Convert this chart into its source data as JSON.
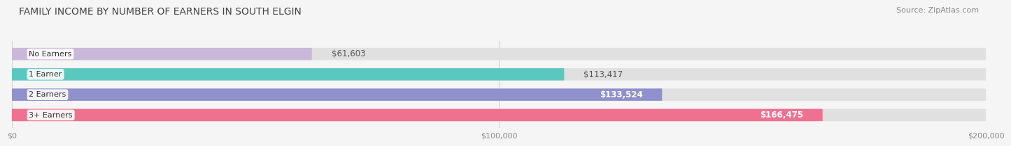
{
  "title": "FAMILY INCOME BY NUMBER OF EARNERS IN SOUTH ELGIN",
  "source": "Source: ZipAtlas.com",
  "categories": [
    "No Earners",
    "1 Earner",
    "2 Earners",
    "3+ Earners"
  ],
  "values": [
    61603,
    113417,
    133524,
    166475
  ],
  "bar_colors": [
    "#c9b8d8",
    "#5bc8c0",
    "#9090cc",
    "#f07090"
  ],
  "bar_bg_color": "#e0e0e0",
  "max_value": 200000,
  "x_ticks": [
    0,
    100000,
    200000
  ],
  "x_tick_labels": [
    "$0",
    "$100,000",
    "$200,000"
  ],
  "background_color": "#f5f5f5",
  "title_fontsize": 10,
  "bar_label_fontsize": 8.5,
  "category_fontsize": 8,
  "source_fontsize": 8
}
